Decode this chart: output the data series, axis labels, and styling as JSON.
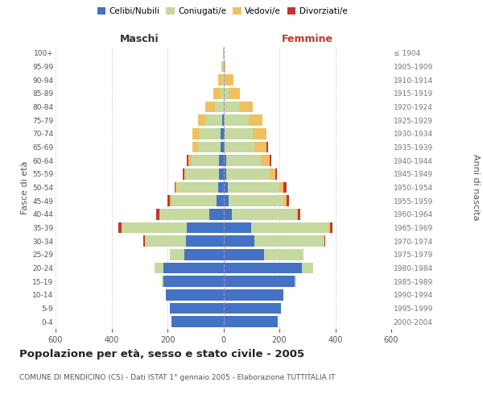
{
  "age_groups": [
    "0-4",
    "5-9",
    "10-14",
    "15-19",
    "20-24",
    "25-29",
    "30-34",
    "35-39",
    "40-44",
    "45-49",
    "50-54",
    "55-59",
    "60-64",
    "65-69",
    "70-74",
    "75-79",
    "80-84",
    "85-89",
    "90-94",
    "95-99",
    "100+"
  ],
  "birth_years": [
    "2000-2004",
    "1995-1999",
    "1990-1994",
    "1985-1989",
    "1980-1984",
    "1975-1979",
    "1970-1974",
    "1965-1969",
    "1960-1964",
    "1955-1959",
    "1950-1954",
    "1945-1949",
    "1940-1944",
    "1935-1939",
    "1930-1934",
    "1925-1929",
    "1920-1924",
    "1915-1919",
    "1910-1914",
    "1905-1909",
    "≤ 1904"
  ],
  "maschi": {
    "celibi": [
      185,
      190,
      205,
      215,
      215,
      140,
      135,
      130,
      50,
      25,
      20,
      15,
      15,
      10,
      10,
      5,
      0,
      0,
      0,
      0,
      0
    ],
    "coniugati": [
      0,
      0,
      0,
      5,
      30,
      50,
      145,
      230,
      175,
      160,
      145,
      120,
      100,
      80,
      75,
      60,
      30,
      10,
      5,
      3,
      0
    ],
    "vedovi": [
      0,
      0,
      0,
      0,
      0,
      0,
      0,
      5,
      5,
      5,
      5,
      5,
      10,
      20,
      25,
      25,
      35,
      25,
      15,
      5,
      2
    ],
    "divorziati": [
      0,
      0,
      0,
      0,
      0,
      0,
      5,
      10,
      10,
      10,
      5,
      5,
      5,
      0,
      0,
      0,
      0,
      0,
      0,
      0,
      0
    ]
  },
  "femmine": {
    "nubili": [
      195,
      205,
      215,
      255,
      280,
      145,
      110,
      100,
      30,
      20,
      15,
      10,
      10,
      5,
      5,
      0,
      0,
      0,
      0,
      0,
      0
    ],
    "coniugate": [
      0,
      0,
      0,
      5,
      40,
      140,
      250,
      275,
      230,
      195,
      185,
      155,
      125,
      105,
      100,
      90,
      55,
      20,
      5,
      2,
      0
    ],
    "vedove": [
      0,
      0,
      0,
      0,
      0,
      0,
      0,
      5,
      5,
      10,
      15,
      20,
      30,
      45,
      50,
      50,
      50,
      40,
      30,
      5,
      2
    ],
    "divorziate": [
      0,
      0,
      0,
      0,
      0,
      0,
      5,
      10,
      10,
      10,
      10,
      5,
      5,
      5,
      0,
      0,
      0,
      0,
      0,
      0,
      0
    ]
  },
  "colors": {
    "celibi_nubili": "#4472c4",
    "coniugati": "#c5d9a0",
    "vedovi": "#f0c060",
    "divorziati": "#c0392b"
  },
  "xlim": 600,
  "title": "Popolazione per età, sesso e stato civile - 2005",
  "subtitle": "COMUNE DI MENDICINO (CS) - Dati ISTAT 1° gennaio 2005 - Elaborazione TUTTITALIA.IT",
  "ylabel_left": "Fasce di età",
  "ylabel_right": "Anni di nascita",
  "xlabel_left": "Maschi",
  "xlabel_right": "Femmine",
  "bg_color": "#ffffff",
  "grid_color": "#cccccc"
}
